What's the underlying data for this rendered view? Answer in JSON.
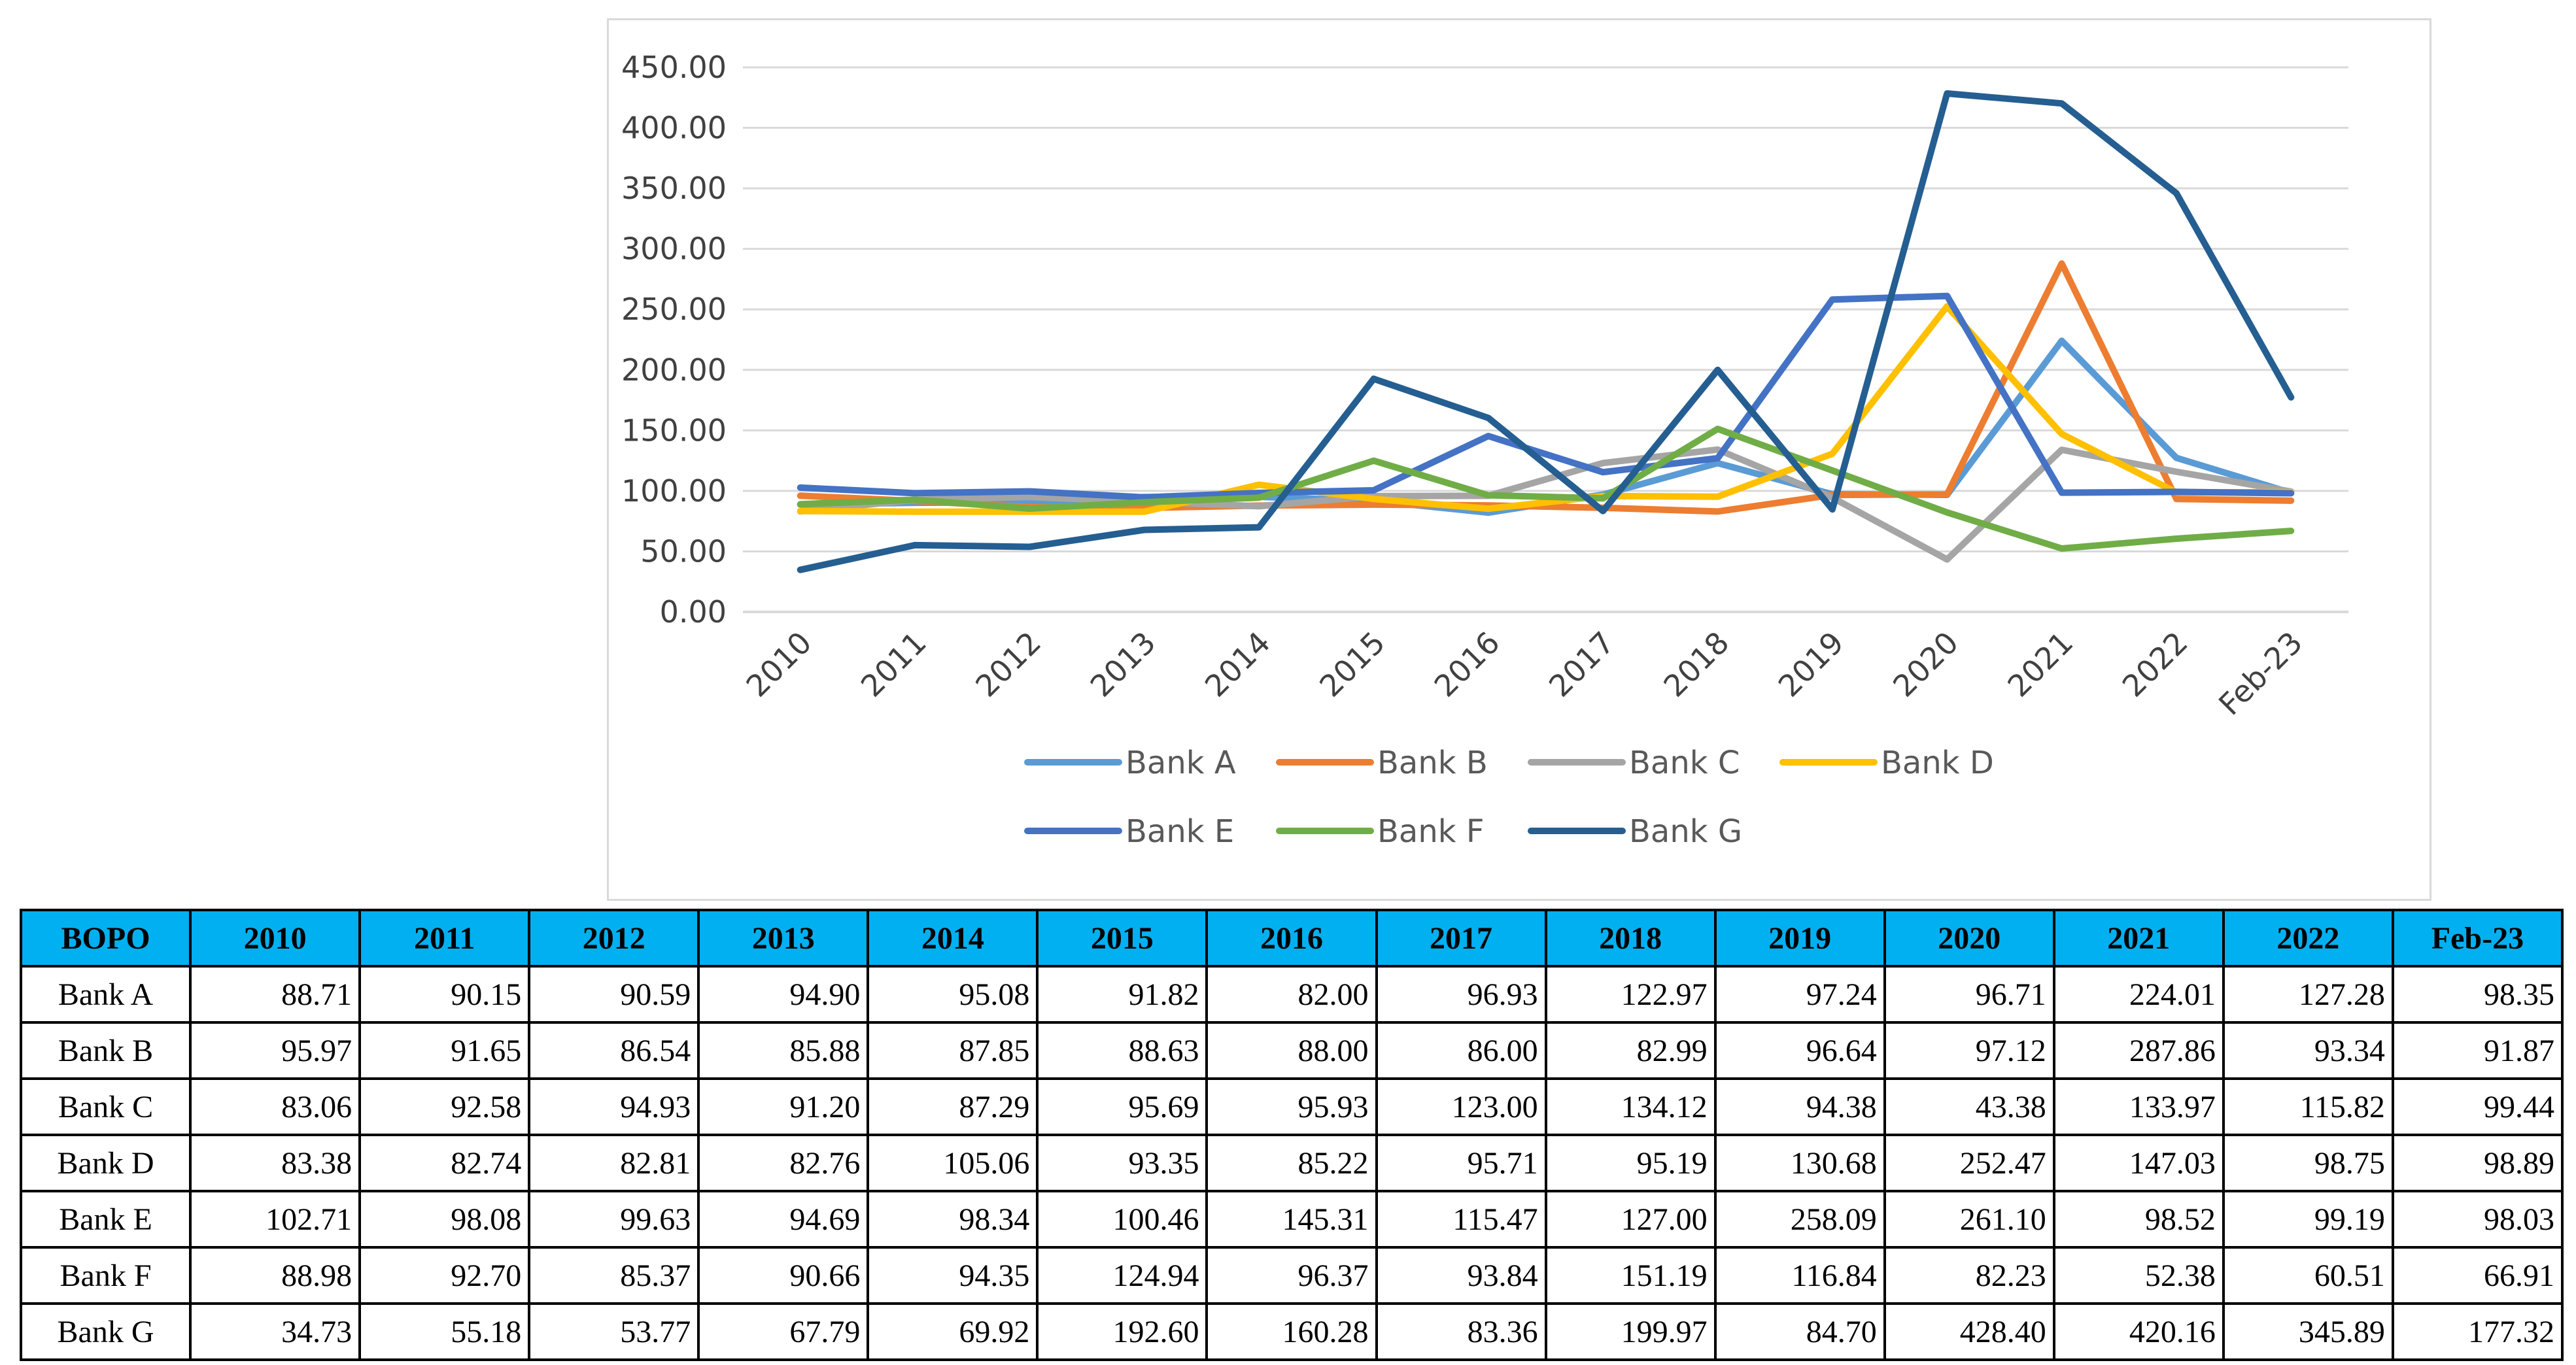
{
  "chart_data": {
    "type": "line",
    "title": "",
    "xlabel": "",
    "ylabel": "",
    "ylim": [
      0,
      450
    ],
    "y_ticks": [
      "0.00",
      "50.00",
      "100.00",
      "150.00",
      "200.00",
      "250.00",
      "300.00",
      "350.00",
      "400.00",
      "450.00"
    ],
    "categories": [
      "2010",
      "2011",
      "2012",
      "2013",
      "2014",
      "2015",
      "2016",
      "2017",
      "2018",
      "2019",
      "2020",
      "2021",
      "2022",
      "Feb-23"
    ],
    "grid": "horizontal",
    "legend_position": "bottom",
    "series": [
      {
        "name": "Bank A",
        "color": "#5b9bd5",
        "values": [
          88.71,
          90.15,
          90.59,
          94.9,
          95.08,
          91.82,
          82.0,
          96.93,
          122.97,
          97.24,
          96.71,
          224.01,
          127.28,
          98.35
        ]
      },
      {
        "name": "Bank B",
        "color": "#ed7d31",
        "values": [
          95.97,
          91.65,
          86.54,
          85.88,
          87.85,
          88.63,
          88.0,
          86.0,
          82.99,
          96.64,
          97.12,
          287.86,
          93.34,
          91.87
        ]
      },
      {
        "name": "Bank C",
        "color": "#a5a5a5",
        "values": [
          83.06,
          92.58,
          94.93,
          91.2,
          87.29,
          95.69,
          95.93,
          123.0,
          134.12,
          94.38,
          43.38,
          133.97,
          115.82,
          99.44
        ]
      },
      {
        "name": "Bank D",
        "color": "#ffc000",
        "values": [
          83.38,
          82.74,
          82.81,
          82.76,
          105.06,
          93.35,
          85.22,
          95.71,
          95.19,
          130.68,
          252.47,
          147.03,
          98.75,
          98.89
        ]
      },
      {
        "name": "Bank E",
        "color": "#4472c4",
        "values": [
          102.71,
          98.08,
          99.63,
          94.69,
          98.34,
          100.46,
          145.31,
          115.47,
          127.0,
          258.09,
          261.1,
          98.52,
          99.19,
          98.03
        ]
      },
      {
        "name": "Bank F",
        "color": "#70ad47",
        "values": [
          88.98,
          92.7,
          85.37,
          90.66,
          94.35,
          124.94,
          96.37,
          93.84,
          151.19,
          116.84,
          82.23,
          52.38,
          60.51,
          66.91
        ]
      },
      {
        "name": "Bank G",
        "color": "#255e91",
        "values": [
          34.73,
          55.18,
          53.77,
          67.79,
          69.92,
          192.6,
          160.28,
          83.36,
          199.97,
          84.7,
          428.4,
          420.16,
          345.89,
          177.32
        ]
      }
    ]
  },
  "table": {
    "header_label": "BOPO",
    "columns": [
      "2010",
      "2011",
      "2012",
      "2013",
      "2014",
      "2015",
      "2016",
      "2017",
      "2018",
      "2019",
      "2020",
      "2021",
      "2022",
      "Feb-23"
    ],
    "rows": [
      {
        "label": "Bank A",
        "values": [
          "88.71",
          "90.15",
          "90.59",
          "94.90",
          "95.08",
          "91.82",
          "82.00",
          "96.93",
          "122.97",
          "97.24",
          "96.71",
          "224.01",
          "127.28",
          "98.35"
        ]
      },
      {
        "label": "Bank B",
        "values": [
          "95.97",
          "91.65",
          "86.54",
          "85.88",
          "87.85",
          "88.63",
          "88.00",
          "86.00",
          "82.99",
          "96.64",
          "97.12",
          "287.86",
          "93.34",
          "91.87"
        ]
      },
      {
        "label": "Bank C",
        "values": [
          "83.06",
          "92.58",
          "94.93",
          "91.20",
          "87.29",
          "95.69",
          "95.93",
          "123.00",
          "134.12",
          "94.38",
          "43.38",
          "133.97",
          "115.82",
          "99.44"
        ]
      },
      {
        "label": "Bank D",
        "values": [
          "83.38",
          "82.74",
          "82.81",
          "82.76",
          "105.06",
          "93.35",
          "85.22",
          "95.71",
          "95.19",
          "130.68",
          "252.47",
          "147.03",
          "98.75",
          "98.89"
        ]
      },
      {
        "label": "Bank E",
        "values": [
          "102.71",
          "98.08",
          "99.63",
          "94.69",
          "98.34",
          "100.46",
          "145.31",
          "115.47",
          "127.00",
          "258.09",
          "261.10",
          "98.52",
          "99.19",
          "98.03"
        ]
      },
      {
        "label": "Bank F",
        "values": [
          "88.98",
          "92.70",
          "85.37",
          "90.66",
          "94.35",
          "124.94",
          "96.37",
          "93.84",
          "151.19",
          "116.84",
          "82.23",
          "52.38",
          "60.51",
          "66.91"
        ]
      },
      {
        "label": "Bank G",
        "values": [
          "34.73",
          "55.18",
          "53.77",
          "67.79",
          "69.92",
          "192.60",
          "160.28",
          "83.36",
          "199.97",
          "84.70",
          "428.40",
          "420.16",
          "345.89",
          "177.32"
        ]
      }
    ]
  }
}
